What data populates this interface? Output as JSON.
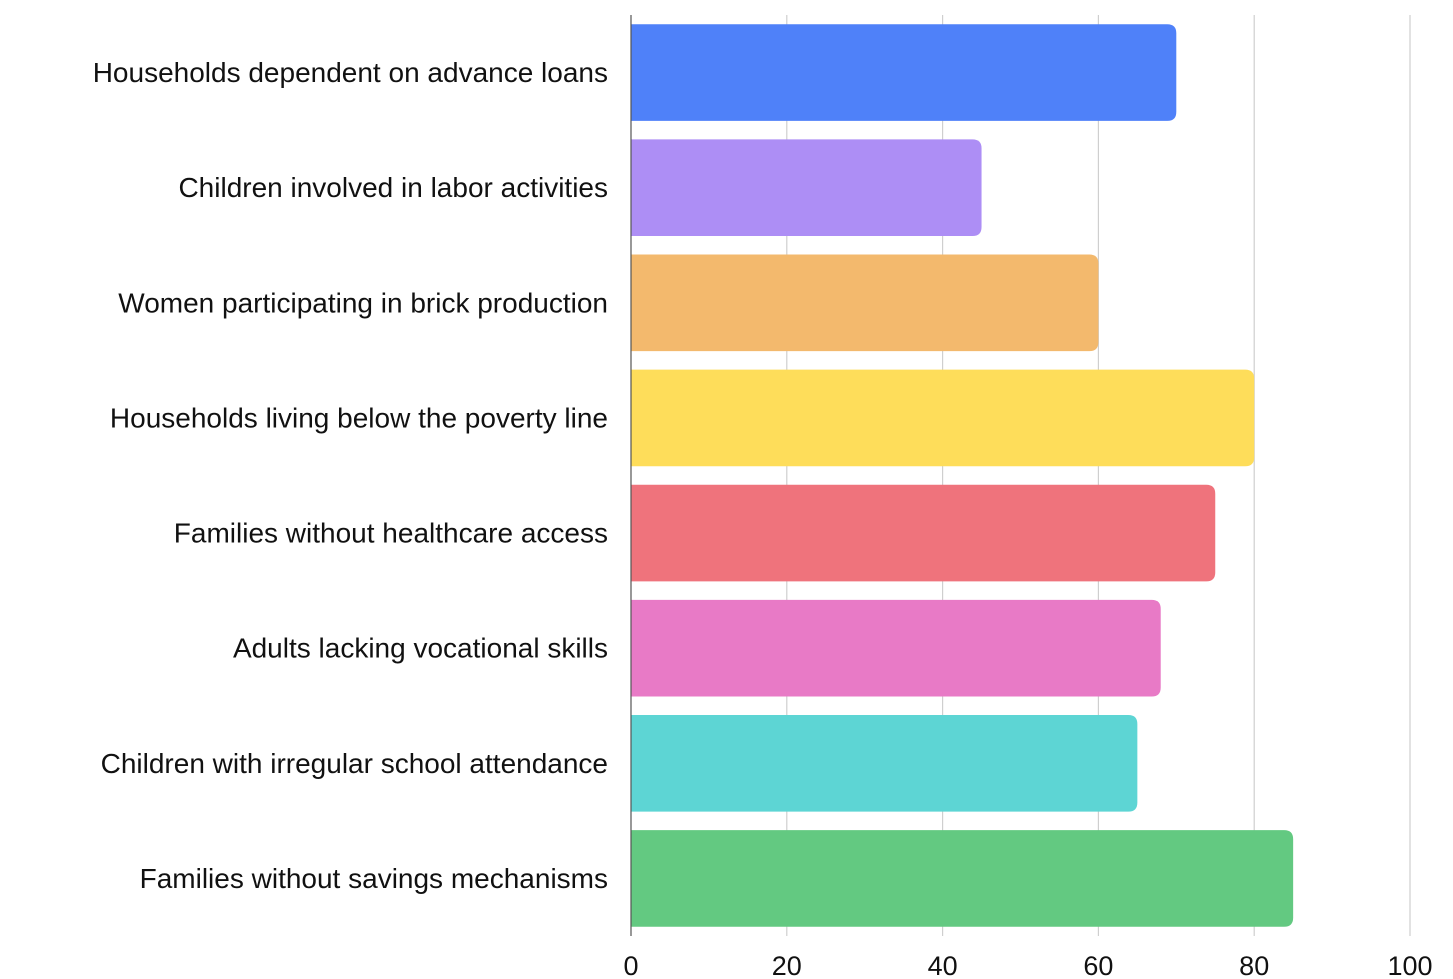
{
  "chart_data": {
    "type": "bar",
    "orientation": "horizontal",
    "categories": [
      "Households dependent on advance loans",
      "Children involved in labor activities",
      "Women participating in brick production",
      "Households living below the poverty line",
      "Families without healthcare access",
      "Adults lacking vocational skills",
      "Children with irregular school attendance",
      "Families without savings mechanisms"
    ],
    "values": [
      70,
      45,
      60,
      80,
      75,
      68,
      65,
      85
    ],
    "colors": [
      "#4f81f9",
      "#ad8ef5",
      "#f3b96d",
      "#fedd5a",
      "#ef737c",
      "#e87ac6",
      "#5dd5d4",
      "#63c981"
    ],
    "xlim": [
      0,
      100
    ],
    "xticks": [
      "0",
      "20",
      "40",
      "60",
      "80",
      "100"
    ],
    "title": "",
    "xlabel": "",
    "ylabel": "",
    "grid": true,
    "legend": "none"
  }
}
